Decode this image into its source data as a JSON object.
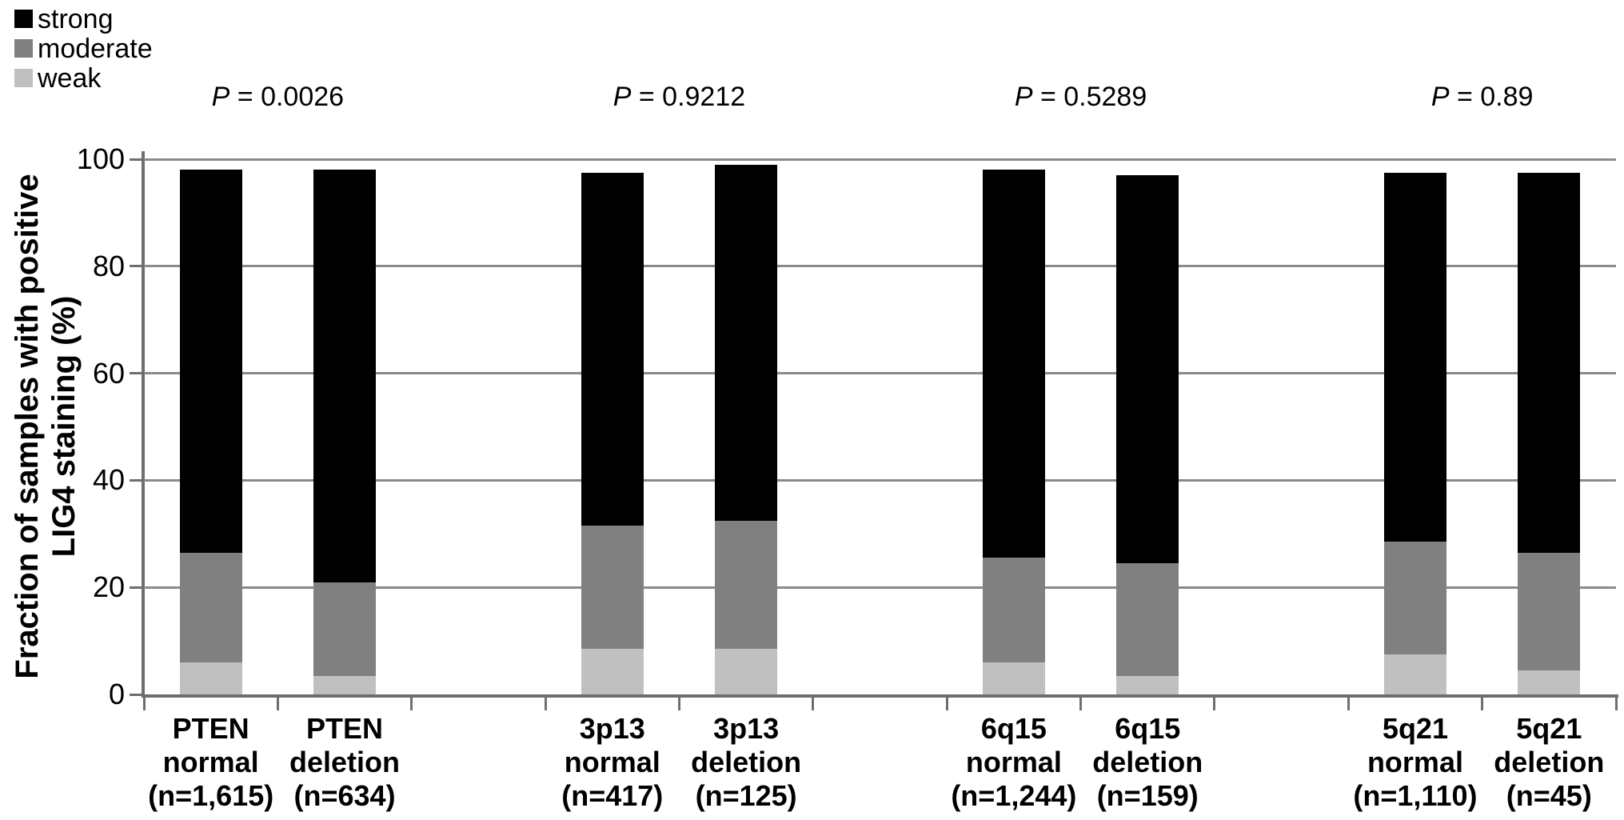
{
  "chart_data": {
    "type": "bar",
    "stacked": true,
    "title": "",
    "ylabel": "Fraction of samples with positive LIG4 staining (%)",
    "ylabel_lines": [
      "Fraction of samples with positive",
      "LIG4 staining (%)"
    ],
    "ylim": [
      0,
      100
    ],
    "yticks": [
      0,
      20,
      40,
      60,
      80,
      100
    ],
    "grid": true,
    "legend_position": "top-left",
    "legend_order": [
      "strong",
      "moderate",
      "weak"
    ],
    "categories": [
      "PTEN normal (n=1,615)",
      "PTEN deletion (n=634)",
      "3p13 normal (n=417)",
      "3p13 deletion (n=125)",
      "6q15 normal (n=1,244)",
      "6q15 deletion (n=159)",
      "5q21 normal (n=1,110)",
      "5q21 deletion (n=45)"
    ],
    "category_lines": [
      [
        "PTEN",
        "normal",
        "(n=1,615)"
      ],
      [
        "PTEN",
        "deletion",
        "(n=634)"
      ],
      [
        "3p13",
        "normal",
        "(n=417)"
      ],
      [
        "3p13",
        "deletion",
        "(n=125)"
      ],
      [
        "6q15",
        "normal",
        "(n=1,244)"
      ],
      [
        "6q15",
        "deletion",
        "(n=159)"
      ],
      [
        "5q21",
        "normal",
        "(n=1,110)"
      ],
      [
        "5q21",
        "deletion",
        "(n=45)"
      ]
    ],
    "series": [
      {
        "name": "weak",
        "color": "#c0c0c0",
        "values": [
          6.0,
          3.5,
          8.5,
          8.5,
          6.0,
          3.5,
          7.5,
          4.5
        ]
      },
      {
        "name": "moderate",
        "color": "#808080",
        "values": [
          20.5,
          17.5,
          23.0,
          24.0,
          19.5,
          21.0,
          21.0,
          22.0
        ]
      },
      {
        "name": "strong",
        "color": "#000000",
        "values": [
          71.5,
          77.0,
          66.0,
          66.5,
          72.5,
          72.5,
          69.0,
          71.0
        ]
      }
    ],
    "p_values": [
      {
        "symbol": "P",
        "text": "= 0.0026"
      },
      {
        "symbol": "P",
        "text": "= 0.9212"
      },
      {
        "symbol": "P",
        "text": "= 0.5289"
      },
      {
        "symbol": "P",
        "text": "= 0.89"
      }
    ]
  }
}
